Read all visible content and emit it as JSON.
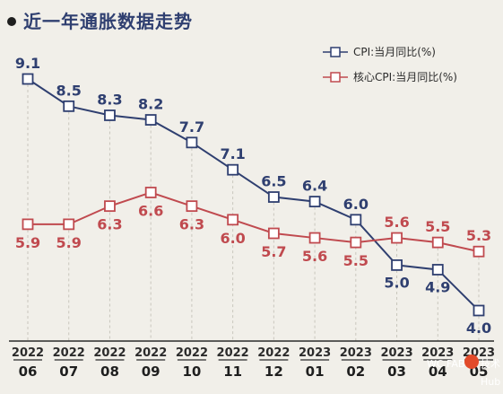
{
  "chart_data": {
    "type": "line",
    "title": "近一年通胀数据走势",
    "categories": [
      {
        "year": "2022",
        "month": "06"
      },
      {
        "year": "2022",
        "month": "07"
      },
      {
        "year": "2022",
        "month": "08"
      },
      {
        "year": "2022",
        "month": "09"
      },
      {
        "year": "2022",
        "month": "10"
      },
      {
        "year": "2022",
        "month": "11"
      },
      {
        "year": "2022",
        "month": "12"
      },
      {
        "year": "2023",
        "month": "01"
      },
      {
        "year": "2023",
        "month": "02"
      },
      {
        "year": "2023",
        "month": "03"
      },
      {
        "year": "2023",
        "month": "04"
      },
      {
        "year": "2023",
        "month": "05"
      }
    ],
    "series": [
      {
        "name": "CPI:当月同比(%)",
        "color": "#2f3f70",
        "values": [
          9.1,
          8.5,
          8.3,
          8.2,
          7.7,
          7.1,
          6.5,
          6.4,
          6.0,
          5.0,
          4.9,
          4.0
        ]
      },
      {
        "name": "核心CPI:当月同比(%)",
        "color": "#c04a4f",
        "values": [
          5.9,
          5.9,
          6.3,
          6.6,
          6.3,
          6.0,
          5.7,
          5.6,
          5.5,
          5.6,
          5.5,
          5.3
        ]
      }
    ],
    "ylim": [
      4.0,
      9.1
    ],
    "grid": false,
    "legend_position": "top-right"
  },
  "watermark": {
    "left_text": "WC FAB",
    "right_text": "技术",
    "sub_text": "Hub"
  }
}
